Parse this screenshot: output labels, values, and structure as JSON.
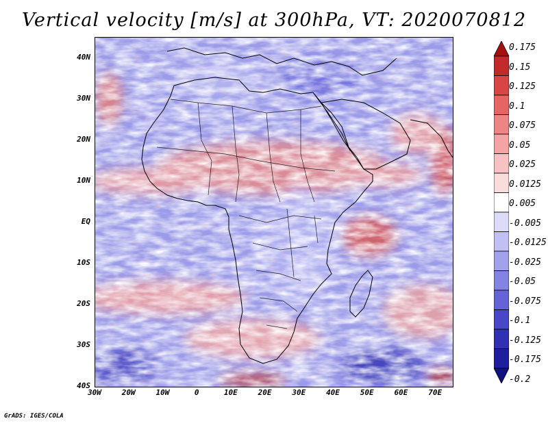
{
  "title": "Vertical velocity [m/s] at 300hPa, VT: 2020070812",
  "credit": "GrADS: IGES/COLA",
  "map": {
    "region": "Africa",
    "lat_range": [
      -40,
      45
    ],
    "lon_range": [
      -30,
      75
    ],
    "lat_labels": [
      "40N",
      "30N",
      "20N",
      "10N",
      "EQ",
      "10S",
      "20S",
      "30S",
      "40S"
    ],
    "lon_labels": [
      "30W",
      "20W",
      "10W",
      "0",
      "10E",
      "20E",
      "30E",
      "40E",
      "50E",
      "60E",
      "70E"
    ]
  },
  "colorbar": {
    "labels": [
      "0.175",
      "0.15",
      "0.125",
      "0.1",
      "0.075",
      "0.05",
      "0.025",
      "0.0125",
      "0.005",
      "-0.005",
      "-0.0125",
      "-0.025",
      "-0.05",
      "-0.075",
      "-0.1",
      "-0.125",
      "-0.175",
      "-0.2"
    ],
    "colors": [
      "#a40f12",
      "#c3282a",
      "#d94444",
      "#e66464",
      "#ee8585",
      "#f4a4a4",
      "#f8c2c2",
      "#fbdcdc",
      "#ffffff",
      "#dcdcfa",
      "#c0c0f4",
      "#a2a2ec",
      "#8383e2",
      "#6464d6",
      "#4747c8",
      "#3030b5",
      "#1e1e9e",
      "#12127f"
    ]
  }
}
